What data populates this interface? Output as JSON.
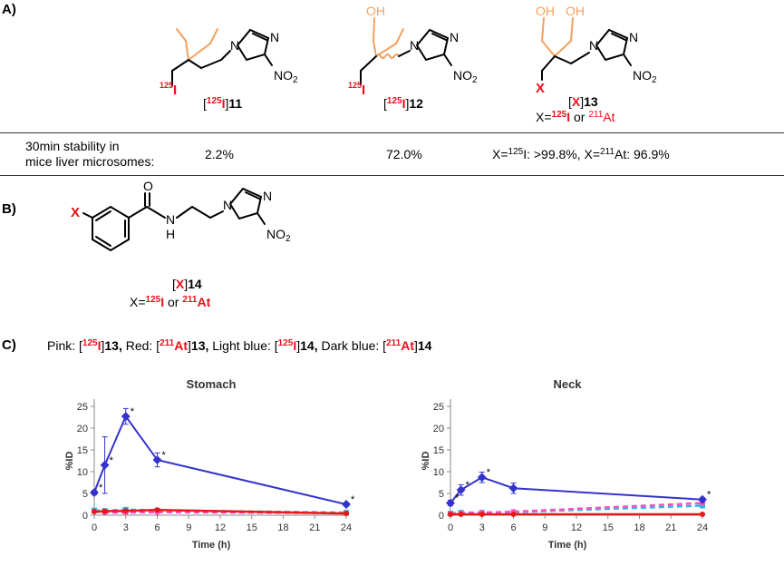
{
  "sections": {
    "a": "A)",
    "b": "B)",
    "c": "C)"
  },
  "compounds": {
    "c11": {
      "iso": "125",
      "el": "I",
      "num": "11"
    },
    "c12": {
      "iso": "125",
      "el": "I",
      "num": "12"
    },
    "c13": {
      "x": "X",
      "num": "13",
      "sub_prefix": "X=",
      "sub_iso1": "125",
      "sub_el1": "I",
      "sub_or": " or ",
      "sub_iso2": "211",
      "sub_el2": "At"
    },
    "c14": {
      "x": "X",
      "num": "14",
      "sub_prefix": "X=",
      "sub_iso1": "125",
      "sub_el1": "I",
      "sub_or": " or ",
      "sub_iso2": "211",
      "sub_el2": "At"
    }
  },
  "structure_text": {
    "n": "N",
    "no2": "NO",
    "no2_sub": "2",
    "oh": "OH",
    "o": "O",
    "h": "H",
    "i125_iso": "125",
    "i125_el": "I",
    "x": "X"
  },
  "stability": {
    "label_line1": "30min stability in",
    "label_line2": "mice liver microsomes:",
    "v11": "2.2%",
    "v12": "72.0%",
    "v13_a": "X=",
    "v13_iso1": "125",
    "v13_b": "I: >99.8%, X=",
    "v13_iso2": "211",
    "v13_c": "At: 96.9%"
  },
  "legend": {
    "pink": "Pink: [",
    "pink_iso": "125",
    "pink_el": "I",
    "pink_num": "13,",
    "red": " Red: [",
    "red_iso": "211",
    "red_el": "At",
    "red_num": "13,",
    "lblue": " Light blue: [",
    "lblue_iso": "125",
    "lblue_el": "I",
    "lblue_num": "14,",
    "dblue": " Dark blue: [",
    "dblue_iso": "211",
    "dblue_el": "At",
    "dblue_num": "14",
    "close": "]"
  },
  "colors": {
    "orange": "#f4a05e",
    "red": "#e8101a",
    "pink": "#ff4fbd",
    "dark_red": "#e81818",
    "light_blue": "#2ab7e6",
    "dark_blue": "#3333cc"
  },
  "chart_data": [
    {
      "type": "line",
      "title": "Stomach",
      "xlabel": "Time (h)",
      "ylabel": "%ID",
      "xlim": [
        0,
        24
      ],
      "ylim": [
        0,
        25
      ],
      "xticks": [
        0,
        3,
        6,
        9,
        12,
        15,
        18,
        21,
        24
      ],
      "yticks": [
        0,
        5,
        10,
        15,
        20,
        25
      ],
      "grid": false,
      "series": [
        {
          "key": "dark_blue",
          "x": [
            0,
            1,
            3,
            6,
            24
          ],
          "y": [
            5.2,
            11.5,
            22.7,
            12.7,
            2.5
          ],
          "err": [
            0.5,
            6.5,
            1.8,
            1.6,
            0.4
          ],
          "star": [
            true,
            true,
            true,
            true,
            true
          ],
          "dashed": false
        },
        {
          "key": "light_blue",
          "x": [
            0,
            1,
            3,
            6,
            24
          ],
          "y": [
            1.1,
            1.0,
            1.3,
            1.1,
            0.6
          ],
          "err": [
            0.2,
            0.3,
            0.2,
            0.3,
            0.1
          ],
          "dashed": true
        },
        {
          "key": "pink",
          "x": [
            0,
            1,
            3,
            6,
            24
          ],
          "y": [
            0.9,
            0.6,
            0.6,
            0.7,
            0.5
          ],
          "err": [
            0.1,
            0.1,
            0.1,
            0.1,
            0.1
          ],
          "dashed": true
        },
        {
          "key": "dark_red",
          "x": [
            0,
            1,
            3,
            6,
            24
          ],
          "y": [
            0.8,
            0.9,
            1.0,
            1.2,
            0.4
          ],
          "err": [
            0.1,
            0.2,
            0.2,
            0.3,
            0.1
          ],
          "dashed": false
        }
      ]
    },
    {
      "type": "line",
      "title": "Neck",
      "xlabel": "Time (h)",
      "ylabel": "%ID",
      "xlim": [
        0,
        24
      ],
      "ylim": [
        0,
        25
      ],
      "xticks": [
        0,
        3,
        6,
        9,
        12,
        15,
        18,
        21,
        24
      ],
      "yticks": [
        0,
        5,
        10,
        15,
        20,
        25
      ],
      "grid": false,
      "series": [
        {
          "key": "dark_blue",
          "x": [
            0,
            1,
            3,
            6,
            24
          ],
          "y": [
            2.8,
            5.8,
            8.7,
            6.2,
            3.6
          ],
          "err": [
            0.6,
            1.2,
            1.2,
            1.2,
            0.4
          ],
          "star": [
            true,
            true,
            true,
            false,
            true
          ],
          "dashed": false
        },
        {
          "key": "light_blue",
          "x": [
            0,
            1,
            3,
            6,
            24
          ],
          "y": [
            0.4,
            0.6,
            0.6,
            0.7,
            2.2
          ],
          "err": [
            0.1,
            0.1,
            0.1,
            0.1,
            0.2
          ],
          "dashed": true
        },
        {
          "key": "pink",
          "x": [
            0,
            1,
            3,
            6,
            24
          ],
          "y": [
            0.3,
            0.5,
            0.6,
            0.8,
            2.8
          ],
          "err": [
            0.1,
            0.1,
            0.1,
            0.1,
            0.2
          ],
          "dashed": true
        },
        {
          "key": "dark_red",
          "x": [
            0,
            1,
            3,
            6,
            24
          ],
          "y": [
            0.2,
            0.2,
            0.2,
            0.2,
            0.2
          ],
          "err": [
            0.05,
            0.05,
            0.05,
            0.05,
            0.05
          ],
          "dashed": false
        }
      ]
    }
  ]
}
